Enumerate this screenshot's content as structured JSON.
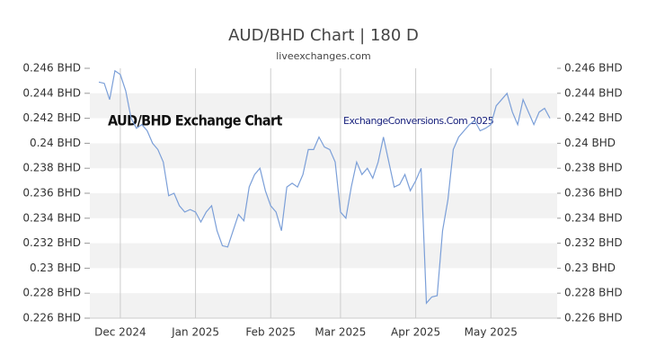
{
  "chart_data": {
    "type": "line",
    "title": "AUD/BHD Chart | 180 D",
    "subtitle": "liveexchanges.com",
    "annotations": [
      "AUD/BHD Exchange Chart",
      "ExchangeConversions.Com 2025"
    ],
    "categories": [
      null,
      null,
      null,
      null,
      "Dec 2024",
      null,
      null,
      null,
      null,
      null,
      null,
      null,
      null,
      null,
      null,
      null,
      null,
      null,
      "Jan 2025",
      null,
      null,
      null,
      null,
      null,
      null,
      null,
      null,
      null,
      null,
      null,
      null,
      null,
      "Feb 2025",
      null,
      null,
      null,
      null,
      null,
      null,
      null,
      null,
      null,
      null,
      null,
      null,
      "Mar 2025",
      null,
      null,
      null,
      null,
      null,
      null,
      null,
      null,
      null,
      null,
      null,
      null,
      null,
      "Apr 2025",
      null,
      null,
      null,
      null,
      null,
      null,
      null,
      null,
      null,
      null,
      null,
      null,
      null,
      "May 2025",
      null,
      null,
      null,
      null,
      null,
      null,
      null,
      null,
      null,
      null,
      null
    ],
    "series": [
      {
        "name": "AUD/BHD",
        "color": "#7b9fd8",
        "values": [
          0.2449,
          0.2448,
          0.2435,
          0.2458,
          0.2455,
          0.2442,
          0.242,
          0.2412,
          0.2415,
          0.241,
          0.24,
          0.2395,
          0.2385,
          0.2358,
          0.236,
          0.235,
          0.2345,
          0.2347,
          0.2345,
          0.2337,
          0.2345,
          0.235,
          0.233,
          0.2318,
          0.2317,
          0.233,
          0.2343,
          0.2338,
          0.2365,
          0.2375,
          0.238,
          0.2362,
          0.235,
          0.2345,
          0.233,
          0.2365,
          0.2368,
          0.2365,
          0.2375,
          0.2395,
          0.2395,
          0.2405,
          0.2397,
          0.2395,
          0.2385,
          0.2345,
          0.234,
          0.2365,
          0.2385,
          0.2375,
          0.238,
          0.2372,
          0.2385,
          0.2405,
          0.2385,
          0.2365,
          0.2367,
          0.2375,
          0.2362,
          0.237,
          0.238,
          0.2272,
          0.2277,
          0.2278,
          0.233,
          0.2355,
          0.2395,
          0.2405,
          0.241,
          0.2415,
          0.2418,
          0.241,
          0.2412,
          0.2415,
          0.243,
          0.2435,
          0.244,
          0.2425,
          0.2415,
          0.2435,
          0.2425,
          0.2415,
          0.2425,
          0.2428,
          0.242
        ]
      }
    ],
    "ylim": [
      0.226,
      0.246
    ],
    "yticks": [
      {
        "value": 0.246,
        "label": "0.246 BHD"
      },
      {
        "value": 0.244,
        "label": "0.244 BHD"
      },
      {
        "value": 0.242,
        "label": "0.242 BHD"
      },
      {
        "value": 0.24,
        "label": "0.24 BHD"
      },
      {
        "value": 0.238,
        "label": "0.238 BHD"
      },
      {
        "value": 0.236,
        "label": "0.236 BHD"
      },
      {
        "value": 0.234,
        "label": "0.234 BHD"
      },
      {
        "value": 0.232,
        "label": "0.232 BHD"
      },
      {
        "value": 0.23,
        "label": "0.23 BHD"
      },
      {
        "value": 0.228,
        "label": "0.228 BHD"
      },
      {
        "value": 0.226,
        "label": "0.226 BHD"
      }
    ],
    "y2lim": [
      0.226,
      0.246
    ],
    "y2ticks": [
      {
        "value": 0.246,
        "label": "0.246 BHD"
      },
      {
        "value": 0.244,
        "label": "0.244 BHD"
      },
      {
        "value": 0.242,
        "label": "0.242 BHD"
      },
      {
        "value": 0.24,
        "label": "0.24 BHD"
      },
      {
        "value": 0.238,
        "label": "0.238 BHD"
      },
      {
        "value": 0.236,
        "label": "0.236 BHD"
      },
      {
        "value": 0.234,
        "label": "0.234 BHD"
      },
      {
        "value": 0.232,
        "label": "0.232 BHD"
      },
      {
        "value": 0.23,
        "label": "0.23 BHD"
      },
      {
        "value": 0.228,
        "label": "0.228 BHD"
      },
      {
        "value": 0.226,
        "label": "0.226 BHD"
      }
    ],
    "grid": true
  }
}
